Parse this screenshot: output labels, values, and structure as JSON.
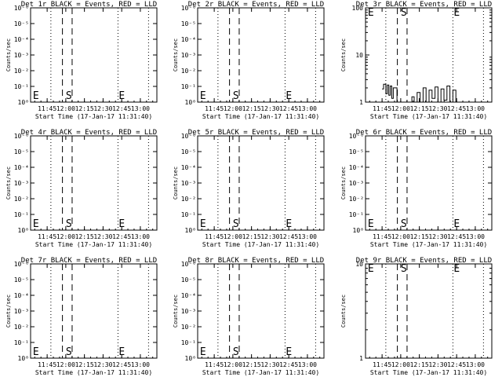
{
  "colors": {
    "background": "#ffffff",
    "foreground": "#000000"
  },
  "chart_data": [
    {
      "type": "line",
      "title": "Det 1r BLACK = Events, RED = LLD",
      "xlabel": "Start Time (17-Jan-17 11:31:40)",
      "ylabel": "Counts/sec",
      "x_ticks": [
        "11:45",
        "12:00",
        "12:15",
        "12:30",
        "12:45",
        "13:00"
      ],
      "y_scale": "log",
      "y_ticks": [
        "10⁰",
        "10⁻¹",
        "10⁻²",
        "10⁻³",
        "10⁻⁴",
        "10⁻⁵",
        "10⁻⁶"
      ],
      "markers": [
        "E",
        "S",
        "E"
      ],
      "series": []
    },
    {
      "type": "line",
      "title": "Det 2r BLACK = Events, RED = LLD",
      "xlabel": "Start Time (17-Jan-17 11:31:40)",
      "ylabel": "Counts/sec",
      "x_ticks": [
        "11:45",
        "12:00",
        "12:15",
        "12:30",
        "12:45",
        "13:00"
      ],
      "y_scale": "log",
      "y_ticks": [
        "10⁰",
        "10⁻¹",
        "10⁻²",
        "10⁻³",
        "10⁻⁴",
        "10⁻⁵",
        "10⁻⁶"
      ],
      "markers": [
        "E",
        "S",
        "E"
      ],
      "series": []
    },
    {
      "type": "line",
      "title": "Det 3r BLACK = Events, RED = LLD",
      "xlabel": "Start Time (17-Jan-17 11:31:40)",
      "ylabel": "Counts/sec",
      "x_ticks": [
        "11:45",
        "12:00",
        "12:15",
        "12:30",
        "12:45",
        "13:00"
      ],
      "y_scale": "log",
      "y_ticks": [
        "1",
        "10",
        "100"
      ],
      "markers": [
        "E",
        "S",
        "E"
      ],
      "series": [
        {
          "color": "#000000",
          "points": [
            [
              11.75,
              1.9
            ],
            [
              11.77,
              2.4
            ],
            [
              11.8,
              1.5
            ],
            [
              11.82,
              2.3
            ],
            [
              11.84,
              1.4
            ],
            [
              11.86,
              2.2
            ],
            [
              11.88,
              1.2
            ],
            [
              11.9,
              2.0
            ],
            [
              11.95,
              1.0
            ],
            [
              12.05,
              1.0
            ],
            [
              12.1,
              1.0
            ],
            [
              12.15,
              1.3
            ],
            [
              12.18,
              1.0
            ],
            [
              12.22,
              1.6
            ],
            [
              12.26,
              1.0
            ],
            [
              12.3,
              2.0
            ],
            [
              12.34,
              1.0
            ],
            [
              12.38,
              1.8
            ],
            [
              12.42,
              1.2
            ],
            [
              12.46,
              2.1
            ],
            [
              12.5,
              1.0
            ],
            [
              12.54,
              1.9
            ],
            [
              12.58,
              1.1
            ],
            [
              12.62,
              2.2
            ],
            [
              12.66,
              1.0
            ],
            [
              12.7,
              1.8
            ],
            [
              12.74,
              1.0
            ]
          ]
        }
      ]
    },
    {
      "type": "line",
      "title": "Det 4r BLACK = Events, RED = LLD",
      "xlabel": "Start Time (17-Jan-17 11:31:40)",
      "ylabel": "Counts/sec",
      "x_ticks": [
        "11:45",
        "12:00",
        "12:15",
        "12:30",
        "12:45",
        "13:00"
      ],
      "y_scale": "log",
      "y_ticks": [
        "10⁰",
        "10⁻¹",
        "10⁻²",
        "10⁻³",
        "10⁻⁴",
        "10⁻⁵",
        "10⁻⁶"
      ],
      "markers": [
        "E",
        "S",
        "E"
      ],
      "series": []
    },
    {
      "type": "line",
      "title": "Det 5r BLACK = Events, RED = LLD",
      "xlabel": "Start Time (17-Jan-17 11:31:40)",
      "ylabel": "Counts/sec",
      "x_ticks": [
        "11:45",
        "12:00",
        "12:15",
        "12:30",
        "12:45",
        "13:00"
      ],
      "y_scale": "log",
      "y_ticks": [
        "10⁰",
        "10⁻¹",
        "10⁻²",
        "10⁻³",
        "10⁻⁴",
        "10⁻⁵",
        "10⁻⁶"
      ],
      "markers": [
        "E",
        "S",
        "E"
      ],
      "series": []
    },
    {
      "type": "line",
      "title": "Det 6r BLACK = Events, RED = LLD",
      "xlabel": "Start Time (17-Jan-17 11:31:40)",
      "ylabel": "Counts/sec",
      "x_ticks": [
        "11:45",
        "12:00",
        "12:15",
        "12:30",
        "12:45",
        "13:00"
      ],
      "y_scale": "log",
      "y_ticks": [
        "10⁰",
        "10⁻¹",
        "10⁻²",
        "10⁻³",
        "10⁻⁴",
        "10⁻⁵",
        "10⁻⁶"
      ],
      "markers": [
        "E",
        "S",
        "E"
      ],
      "series": []
    },
    {
      "type": "line",
      "title": "Det 7r BLACK = Events, RED = LLD",
      "xlabel": "Start Time (17-Jan-17 11:31:40)",
      "ylabel": "Counts/sec",
      "x_ticks": [
        "11:45",
        "12:00",
        "12:15",
        "12:30",
        "12:45",
        "13:00"
      ],
      "y_scale": "log",
      "y_ticks": [
        "10⁰",
        "10⁻¹",
        "10⁻²",
        "10⁻³",
        "10⁻⁴",
        "10⁻⁵",
        "10⁻⁶"
      ],
      "markers": [
        "E",
        "S",
        "E"
      ],
      "series": []
    },
    {
      "type": "line",
      "title": "Det 8r BLACK = Events, RED = LLD",
      "xlabel": "Start Time (17-Jan-17 11:31:40)",
      "ylabel": "Counts/sec",
      "x_ticks": [
        "11:45",
        "12:00",
        "12:15",
        "12:30",
        "12:45",
        "13:00"
      ],
      "y_scale": "log",
      "y_ticks": [
        "10⁰",
        "10⁻¹",
        "10⁻²",
        "10⁻³",
        "10⁻⁴",
        "10⁻⁵",
        "10⁻⁶"
      ],
      "markers": [
        "E",
        "S",
        "E"
      ],
      "series": []
    },
    {
      "type": "line",
      "title": "Det 9r BLACK = Events, RED = LLD",
      "xlabel": "Start Time (17-Jan-17 11:31:40)",
      "ylabel": "Counts/sec",
      "x_ticks": [
        "11:45",
        "12:00",
        "12:15",
        "12:30",
        "12:45",
        "13:00"
      ],
      "y_scale": "log",
      "y_ticks": [
        "1",
        "10"
      ],
      "markers": [
        "E",
        "S",
        "E"
      ],
      "series": []
    }
  ]
}
